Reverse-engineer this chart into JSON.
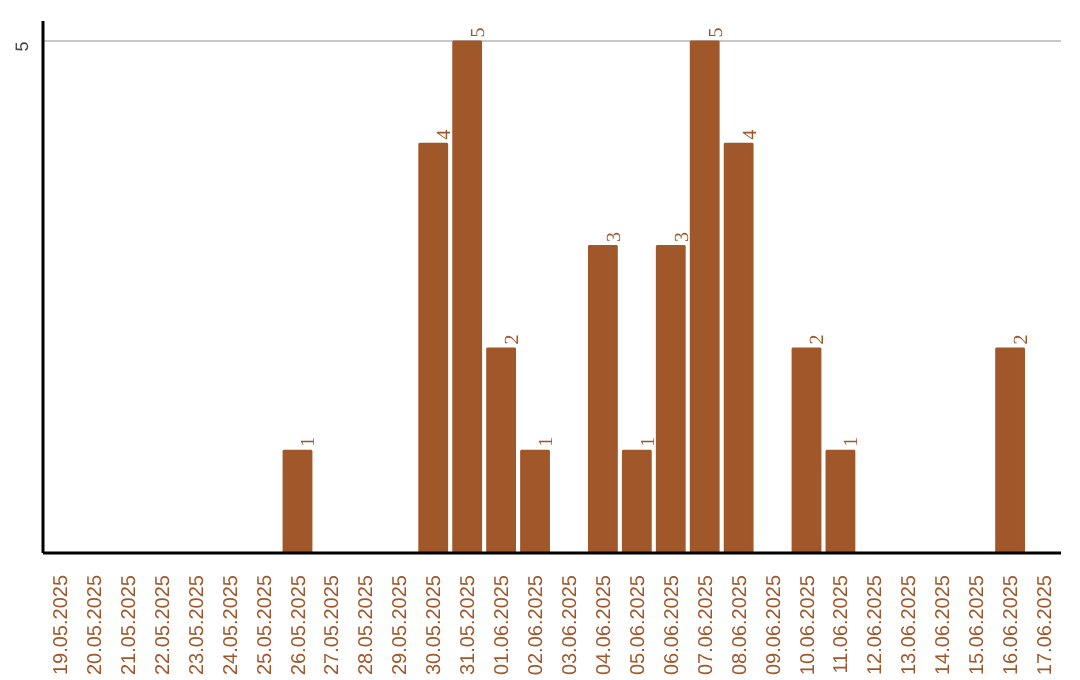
{
  "chart_data": {
    "type": "bar",
    "categories": [
      "19.05.2025",
      "20.05.2025",
      "21.05.2025",
      "22.05.2025",
      "23.05.2025",
      "24.05.2025",
      "25.05.2025",
      "26.05.2025",
      "27.05.2025",
      "28.05.2025",
      "29.05.2025",
      "30.05.2025",
      "31.05.2025",
      "01.06.2025",
      "02.06.2025",
      "03.06.2025",
      "04.06.2025",
      "05.06.2025",
      "06.06.2025",
      "07.06.2025",
      "08.06.2025",
      "09.06.2025",
      "10.06.2025",
      "11.06.2025",
      "12.06.2025",
      "13.06.2025",
      "14.06.2025",
      "15.06.2025",
      "16.06.2025",
      "17.06.2025"
    ],
    "values": [
      null,
      null,
      null,
      null,
      null,
      null,
      null,
      1,
      null,
      null,
      null,
      4,
      5,
      2,
      1,
      null,
      3,
      1,
      3,
      5,
      4,
      null,
      2,
      1,
      null,
      null,
      null,
      null,
      2,
      null
    ],
    "color": "#a0572a",
    "ylim": [
      0,
      5.2
    ],
    "yticks": [
      5
    ],
    "grid": "y",
    "data_labels": true
  }
}
